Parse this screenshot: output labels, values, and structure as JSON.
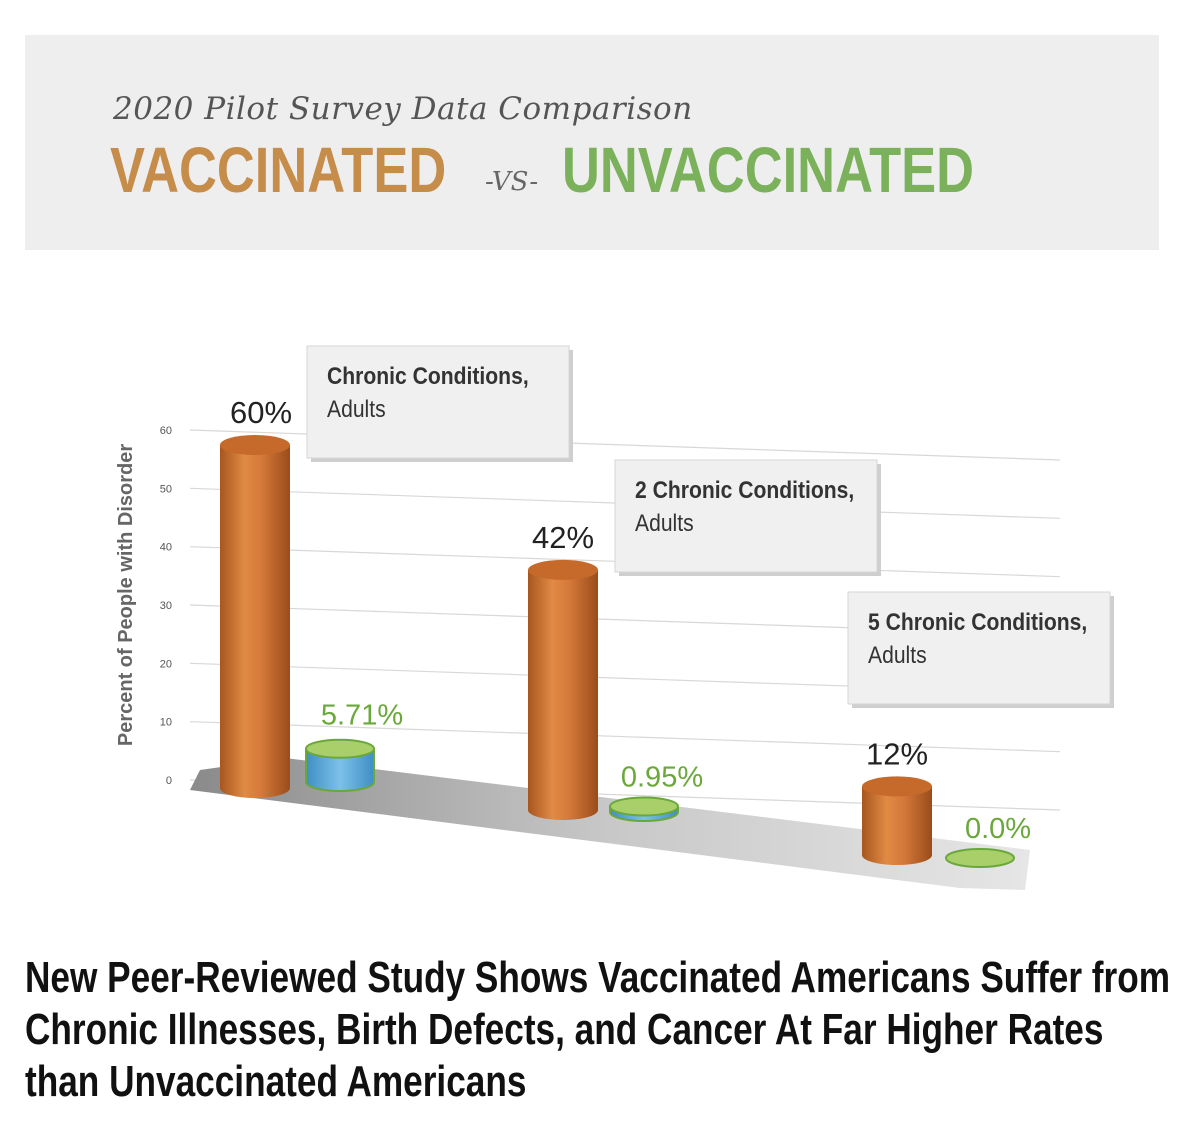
{
  "header": {
    "subtitle": "2020 Pilot Survey Data Comparison",
    "vaccinated": "VACCINATED",
    "vs": "-VS-",
    "unvaccinated": "UNVACCINATED"
  },
  "colors": {
    "vaccinated": "#c68c4a",
    "unvaccinated": "#7ab15a",
    "bar_orange": "#d0742e",
    "bar_green": "#9cc85a",
    "bar_blue": "#5aa4d6"
  },
  "chart_data": {
    "type": "bar",
    "ylabel": "Percent of People with Disorder",
    "ylim": [
      0,
      60
    ],
    "yticks": [
      0,
      10,
      20,
      30,
      40,
      50,
      60
    ],
    "categories": [
      "Chronic Conditions, Adults",
      "2 Chronic Conditions, Adults",
      "5 Chronic Conditions, Adults"
    ],
    "category_lines": [
      [
        "Chronic Conditions,",
        "Adults"
      ],
      [
        "2 Chronic Conditions,",
        "Adults"
      ],
      [
        "5 Chronic Conditions,",
        "Adults"
      ]
    ],
    "series": [
      {
        "name": "Vaccinated",
        "values": [
          60,
          42,
          12
        ],
        "labels": [
          "60%",
          "42%",
          "12%"
        ]
      },
      {
        "name": "Unvaccinated",
        "values": [
          5.71,
          0.95,
          0.0
        ],
        "labels": [
          "5.71%",
          "0.95%",
          "0.0%"
        ]
      }
    ]
  },
  "headline": "New Peer-Reviewed Study Shows Vaccinated Americans Suffer from Chronic Illnesses, Birth Defects, and Cancer At Far Higher Rates than Unvaccinated Americans"
}
